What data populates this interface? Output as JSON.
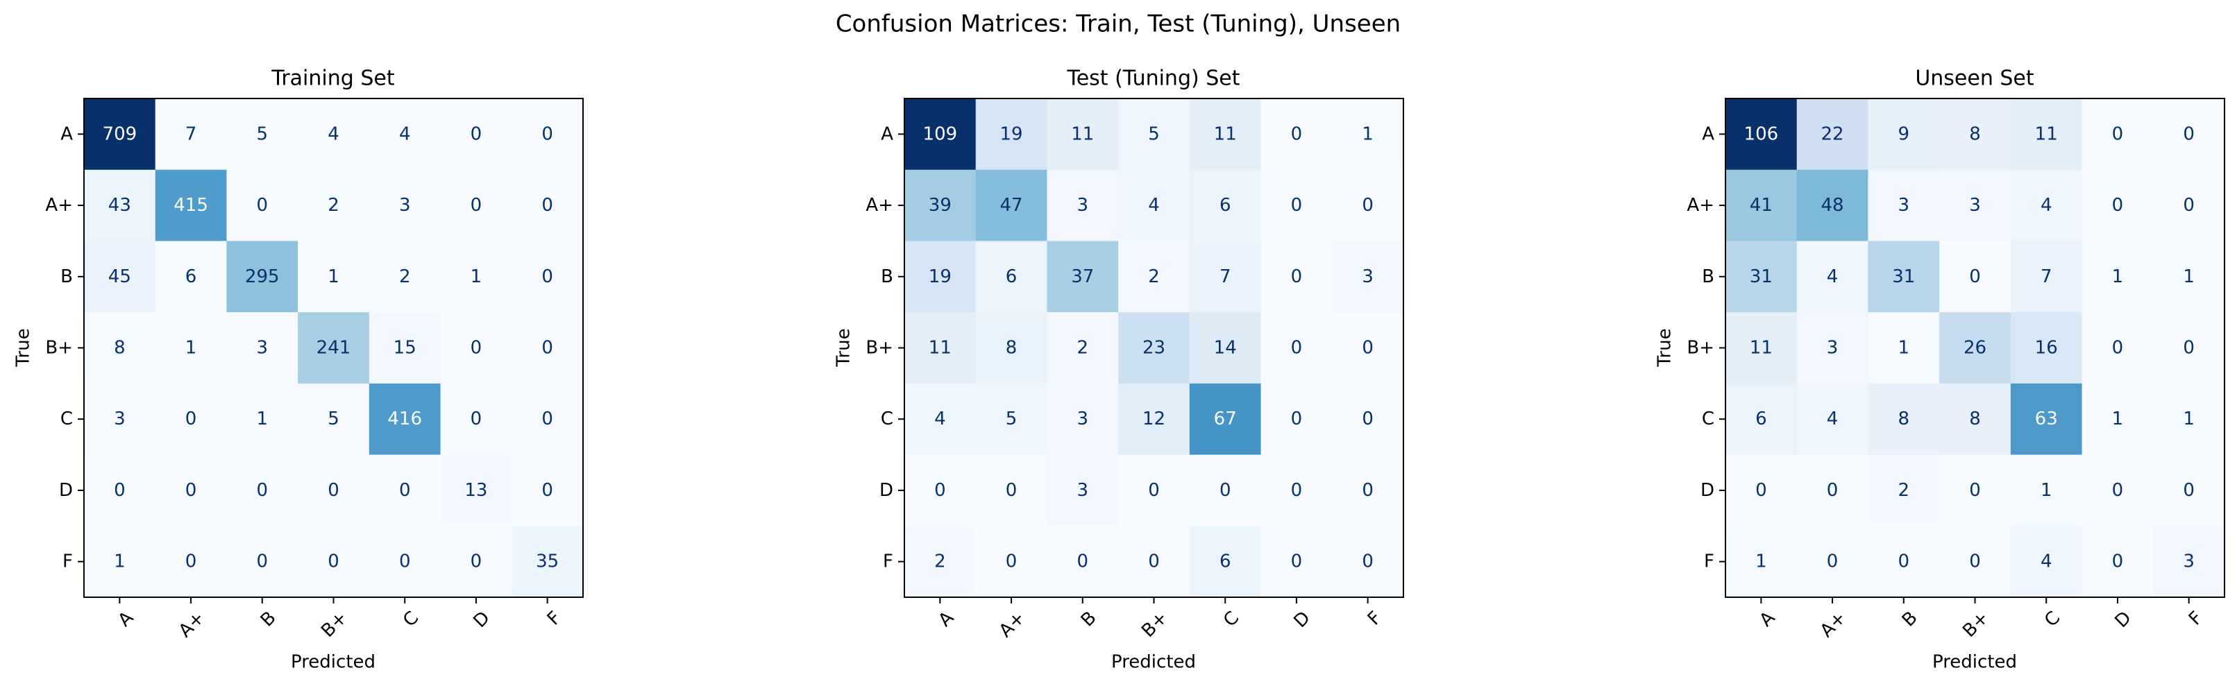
{
  "figure_title": "Confusion Matrices: Train, Test (Tuning), Unseen",
  "colors": {
    "cmap": "Blues",
    "low": "#f7fbff",
    "high": "#08306b",
    "text_light": "#ffffff",
    "text_dark": "#08306b",
    "frame": "#000000"
  },
  "chart_data": [
    {
      "type": "heatmap",
      "title": "Training Set",
      "xlabel": "Predicted",
      "ylabel": "True",
      "x_categories": [
        "A",
        "A+",
        "B",
        "B+",
        "C",
        "D",
        "F"
      ],
      "y_categories": [
        "A",
        "A+",
        "B",
        "B+",
        "C",
        "D",
        "F"
      ],
      "values": [
        [
          709,
          7,
          5,
          4,
          4,
          0,
          0
        ],
        [
          43,
          415,
          0,
          2,
          3,
          0,
          0
        ],
        [
          45,
          6,
          295,
          1,
          2,
          1,
          0
        ],
        [
          8,
          1,
          3,
          241,
          15,
          0,
          0
        ],
        [
          3,
          0,
          1,
          5,
          416,
          0,
          0
        ],
        [
          0,
          0,
          0,
          0,
          0,
          13,
          0
        ],
        [
          1,
          0,
          0,
          0,
          0,
          0,
          35
        ]
      ],
      "x_tick_rotation_deg": 45,
      "grid": false
    },
    {
      "type": "heatmap",
      "title": "Test (Tuning) Set",
      "xlabel": "Predicted",
      "ylabel": "True",
      "x_categories": [
        "A",
        "A+",
        "B",
        "B+",
        "C",
        "D",
        "F"
      ],
      "y_categories": [
        "A",
        "A+",
        "B",
        "B+",
        "C",
        "D",
        "F"
      ],
      "values": [
        [
          109,
          19,
          11,
          5,
          11,
          0,
          1
        ],
        [
          39,
          47,
          3,
          4,
          6,
          0,
          0
        ],
        [
          19,
          6,
          37,
          2,
          7,
          0,
          3
        ],
        [
          11,
          8,
          2,
          23,
          14,
          0,
          0
        ],
        [
          4,
          5,
          3,
          12,
          67,
          0,
          0
        ],
        [
          0,
          0,
          3,
          0,
          0,
          0,
          0
        ],
        [
          2,
          0,
          0,
          0,
          6,
          0,
          0
        ]
      ],
      "x_tick_rotation_deg": 45,
      "grid": false
    },
    {
      "type": "heatmap",
      "title": "Unseen Set",
      "xlabel": "Predicted",
      "ylabel": "True",
      "x_categories": [
        "A",
        "A+",
        "B",
        "B+",
        "C",
        "D",
        "F"
      ],
      "y_categories": [
        "A",
        "A+",
        "B",
        "B+",
        "C",
        "D",
        "F"
      ],
      "values": [
        [
          106,
          22,
          9,
          8,
          11,
          0,
          0
        ],
        [
          41,
          48,
          3,
          3,
          4,
          0,
          0
        ],
        [
          31,
          4,
          31,
          0,
          7,
          1,
          1
        ],
        [
          11,
          3,
          1,
          26,
          16,
          0,
          0
        ],
        [
          6,
          4,
          8,
          8,
          63,
          1,
          1
        ],
        [
          0,
          0,
          2,
          0,
          1,
          0,
          0
        ],
        [
          1,
          0,
          0,
          0,
          4,
          0,
          3
        ]
      ],
      "x_tick_rotation_deg": 45,
      "grid": false
    }
  ]
}
